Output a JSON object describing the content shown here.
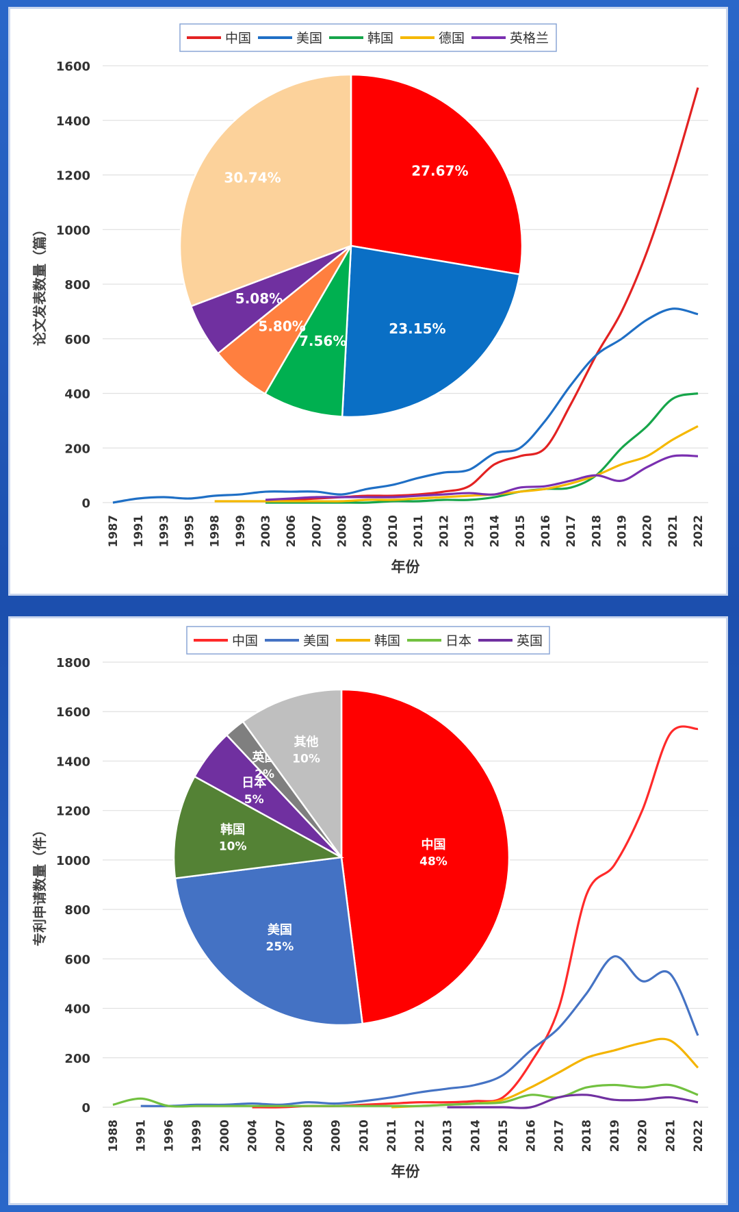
{
  "chart_data": [
    {
      "type": "line",
      "ylabel": "论文发表数量（篇）",
      "xlabel": "年份",
      "ylim": [
        0,
        1600
      ],
      "yticks": [
        0,
        200,
        400,
        600,
        800,
        1000,
        1200,
        1400,
        1600
      ],
      "categories": [
        "1987",
        "1991",
        "1993",
        "1995",
        "1998",
        "1999",
        "2003",
        "2006",
        "2007",
        "2008",
        "2009",
        "2010",
        "2011",
        "2012",
        "2013",
        "2014",
        "2015",
        "2016",
        "2017",
        "2018",
        "2019",
        "2020",
        "2021",
        "2022"
      ],
      "legend": [
        "中国",
        "美国",
        "韩国",
        "德国",
        "英格兰"
      ],
      "series": [
        {
          "name": "中国",
          "color": "#e32222",
          "values": [
            null,
            null,
            null,
            null,
            null,
            null,
            5,
            10,
            15,
            20,
            25,
            25,
            30,
            40,
            60,
            140,
            170,
            200,
            360,
            540,
            700,
            920,
            1200,
            1520
          ]
        },
        {
          "name": "美国",
          "color": "#1f6fc5",
          "values": [
            0,
            15,
            20,
            15,
            25,
            30,
            40,
            40,
            40,
            30,
            50,
            65,
            90,
            110,
            120,
            180,
            200,
            300,
            430,
            540,
            600,
            670,
            710,
            690
          ]
        },
        {
          "name": "韩国",
          "color": "#16a54a",
          "values": [
            null,
            null,
            null,
            null,
            null,
            null,
            0,
            0,
            0,
            0,
            0,
            5,
            5,
            10,
            10,
            20,
            40,
            50,
            55,
            100,
            200,
            280,
            380,
            400
          ]
        },
        {
          "name": "德国",
          "color": "#f5b800",
          "values": [
            null,
            null,
            null,
            null,
            5,
            5,
            5,
            5,
            5,
            5,
            10,
            10,
            15,
            20,
            25,
            30,
            40,
            50,
            70,
            100,
            140,
            170,
            230,
            280
          ]
        },
        {
          "name": "英格兰",
          "color": "#7a2fb0",
          "values": [
            null,
            null,
            null,
            null,
            null,
            null,
            10,
            15,
            20,
            20,
            20,
            20,
            25,
            30,
            35,
            30,
            55,
            60,
            80,
            100,
            80,
            130,
            170,
            170
          ]
        }
      ],
      "pie": {
        "slices": [
          {
            "label": "27.67%",
            "value": 27.67,
            "color": "#ff0000"
          },
          {
            "label": "23.15%",
            "value": 23.15,
            "color": "#0a6fc5"
          },
          {
            "label": "7.56%",
            "value": 7.56,
            "color": "#00b050"
          },
          {
            "label": "5.80%",
            "value": 5.8,
            "color": "#ff7f3f"
          },
          {
            "label": "5.08%",
            "value": 5.08,
            "color": "#7030a0"
          },
          {
            "label": "30.74%",
            "value": 30.74,
            "color": "#fcd29b"
          }
        ]
      }
    },
    {
      "type": "line",
      "ylabel": "专利申请数量（件）",
      "xlabel": "年份",
      "ylim": [
        0,
        1800
      ],
      "yticks": [
        0,
        200,
        400,
        600,
        800,
        1000,
        1200,
        1400,
        1600,
        1800
      ],
      "categories": [
        "1988",
        "1991",
        "1996",
        "1999",
        "2000",
        "2004",
        "2007",
        "2008",
        "2009",
        "2010",
        "2011",
        "2012",
        "2013",
        "2014",
        "2015",
        "2016",
        "2017",
        "2018",
        "2019",
        "2020",
        "2021",
        "2022"
      ],
      "legend": [
        "中国",
        "美国",
        "韩国",
        "日本",
        "英国"
      ],
      "series": [
        {
          "name": "中国",
          "color": "#ff2a2a",
          "values": [
            null,
            null,
            null,
            null,
            null,
            0,
            0,
            5,
            5,
            10,
            15,
            20,
            20,
            25,
            40,
            180,
            400,
            860,
            980,
            1200,
            1510,
            1530
          ]
        },
        {
          "name": "美国",
          "color": "#4573c4",
          "values": [
            null,
            5,
            5,
            10,
            10,
            15,
            10,
            20,
            15,
            25,
            40,
            60,
            75,
            90,
            130,
            230,
            320,
            460,
            610,
            510,
            540,
            290
          ]
        },
        {
          "name": "韩国",
          "color": "#f4b400",
          "values": [
            null,
            null,
            null,
            null,
            null,
            null,
            null,
            null,
            null,
            null,
            0,
            5,
            10,
            15,
            30,
            80,
            140,
            200,
            230,
            260,
            270,
            160
          ]
        },
        {
          "name": "日本",
          "color": "#72c140",
          "values": [
            10,
            35,
            5,
            5,
            5,
            5,
            5,
            5,
            5,
            5,
            5,
            5,
            10,
            15,
            20,
            50,
            40,
            80,
            90,
            80,
            90,
            50
          ]
        },
        {
          "name": "英国",
          "color": "#7030a0",
          "values": [
            null,
            null,
            null,
            null,
            null,
            null,
            null,
            null,
            null,
            null,
            null,
            null,
            0,
            0,
            0,
            0,
            40,
            50,
            30,
            30,
            40,
            20
          ]
        }
      ],
      "pie": {
        "slices": [
          {
            "label": "中国",
            "pct": "48%",
            "value": 48,
            "color": "#ff0000"
          },
          {
            "label": "美国",
            "pct": "25%",
            "value": 25,
            "color": "#4472c4"
          },
          {
            "label": "韩国",
            "pct": "10%",
            "value": 10,
            "color": "#548235"
          },
          {
            "label": "日本",
            "pct": "5%",
            "value": 5,
            "color": "#7030a0"
          },
          {
            "label": "英国",
            "pct": "2%",
            "value": 2,
            "color": "#7f7f7f"
          },
          {
            "label": "其他",
            "pct": "10%",
            "value": 10,
            "color": "#bfbfbf"
          }
        ]
      }
    }
  ]
}
